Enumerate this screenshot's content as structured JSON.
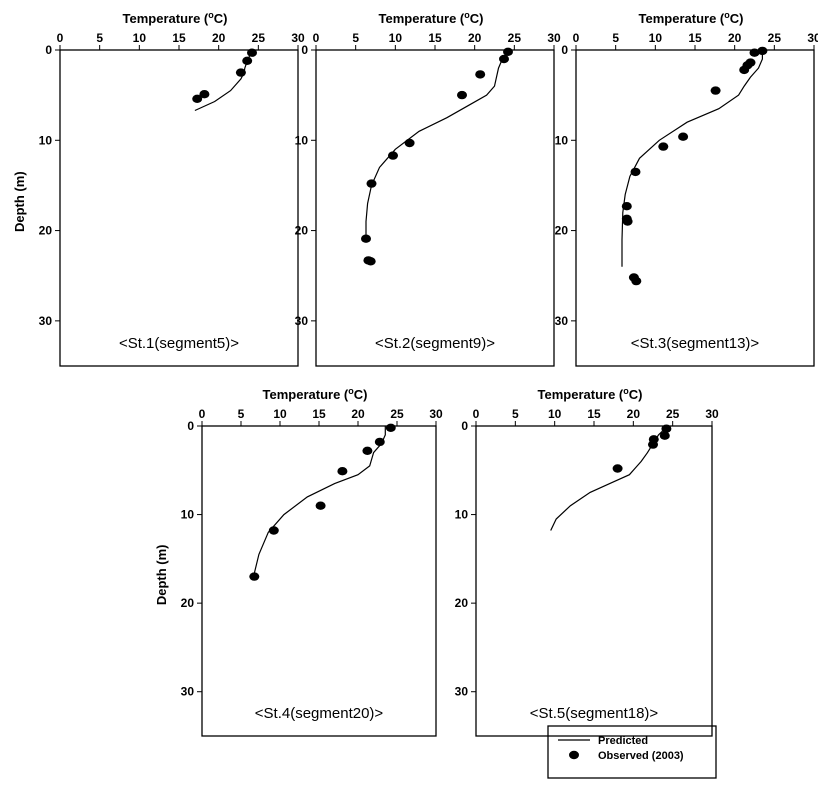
{
  "legend": {
    "items": [
      {
        "label": "Predicted",
        "kind": "line"
      },
      {
        "label": "Observed (2003)",
        "kind": "dot"
      }
    ]
  },
  "chart_data": [
    {
      "type": "line",
      "title": "<St.1(segment5)>",
      "xlabel": "Temperature (°C)",
      "ylabel": "Depth (m)",
      "xlim": [
        0,
        30
      ],
      "ylim": [
        35,
        0
      ],
      "xticks": [
        0,
        5,
        10,
        15,
        20,
        25,
        30
      ],
      "yticks": [
        0,
        10,
        20,
        30
      ],
      "series": [
        {
          "name": "Predicted",
          "kind": "line",
          "x": [
            24.0,
            24.0,
            23.7,
            23.5,
            23.3,
            23.2,
            22.8,
            21.5,
            19.5,
            17.0
          ],
          "y": [
            0,
            0.5,
            1.0,
            1.5,
            2.0,
            2.5,
            3.2,
            4.5,
            5.7,
            6.7
          ]
        },
        {
          "name": "Observed (2003)",
          "kind": "scatter",
          "x": [
            24.2,
            23.6,
            22.8,
            18.2,
            17.3
          ],
          "y": [
            0.3,
            1.2,
            2.5,
            4.9,
            5.4
          ]
        }
      ]
    },
    {
      "type": "line",
      "title": "<St.2(segment9)>",
      "xlabel": "Temperature (°C)",
      "ylabel": "",
      "xlim": [
        0,
        30
      ],
      "ylim": [
        35,
        0
      ],
      "xticks": [
        0,
        5,
        10,
        15,
        20,
        25,
        30
      ],
      "yticks": [
        0,
        10,
        20,
        30
      ],
      "series": [
        {
          "name": "Predicted",
          "kind": "line",
          "x": [
            24.2,
            24.0,
            23.5,
            23.0,
            22.5,
            21.5,
            19.5,
            16.5,
            13.0,
            10.0,
            8.0,
            7.0,
            6.5,
            6.3,
            6.3
          ],
          "y": [
            0,
            0.5,
            1.0,
            2.0,
            4.0,
            5.0,
            6.0,
            7.5,
            9.0,
            11.0,
            13.0,
            15.0,
            17.0,
            19.0,
            21.0
          ]
        },
        {
          "name": "Observed (2003)",
          "kind": "scatter",
          "x": [
            24.2,
            23.7,
            20.7,
            18.4,
            11.8,
            9.7,
            7.0,
            6.3,
            6.6,
            6.9
          ],
          "y": [
            0.2,
            1.0,
            2.7,
            5.0,
            10.3,
            11.7,
            14.8,
            20.9,
            23.3,
            23.4
          ]
        }
      ]
    },
    {
      "type": "line",
      "title": "<St.3(segment13)>",
      "xlabel": "Temperature (°C)",
      "ylabel": "",
      "xlim": [
        0,
        30
      ],
      "ylim": [
        35,
        0
      ],
      "xticks": [
        0,
        5,
        10,
        15,
        20,
        25,
        30
      ],
      "yticks": [
        0,
        10,
        20,
        30
      ],
      "series": [
        {
          "name": "Predicted",
          "kind": "line",
          "x": [
            23.5,
            23.5,
            23.0,
            22.0,
            21.2,
            20.5,
            18.0,
            14.0,
            10.5,
            8.0,
            6.8,
            6.2,
            5.9,
            5.8,
            5.8
          ],
          "y": [
            0,
            1.0,
            2.0,
            3.0,
            4.0,
            5.0,
            6.5,
            8.0,
            10.0,
            12.0,
            14.0,
            16.0,
            18.0,
            21.0,
            24.0
          ]
        },
        {
          "name": "Observed (2003)",
          "kind": "scatter",
          "x": [
            23.5,
            22.5,
            22.0,
            21.6,
            21.2,
            17.6,
            13.5,
            11.0,
            7.5,
            6.4,
            6.4,
            6.5,
            7.3,
            7.6
          ],
          "y": [
            0.1,
            0.3,
            1.4,
            1.7,
            2.2,
            4.5,
            9.6,
            10.7,
            13.5,
            17.3,
            18.7,
            19.0,
            25.2,
            25.6
          ]
        }
      ]
    },
    {
      "type": "line",
      "title": "<St.4(segment20)>",
      "xlabel": "Temperature (°C)",
      "ylabel": "Depth (m)",
      "xlim": [
        0,
        30
      ],
      "ylim": [
        35,
        0
      ],
      "xticks": [
        0,
        5,
        10,
        15,
        20,
        25,
        30
      ],
      "yticks": [
        0,
        10,
        20,
        30
      ],
      "series": [
        {
          "name": "Predicted",
          "kind": "line",
          "x": [
            23.5,
            23.5,
            23.0,
            22.0,
            21.5,
            20.0,
            17.0,
            13.5,
            10.5,
            8.5,
            7.3,
            6.6
          ],
          "y": [
            0,
            1.0,
            2.0,
            3.0,
            4.5,
            5.5,
            6.5,
            8.0,
            10.0,
            12.0,
            14.5,
            17.0
          ]
        },
        {
          "name": "Observed (2003)",
          "kind": "scatter",
          "x": [
            24.2,
            22.8,
            21.2,
            18.0,
            15.2,
            9.2,
            6.7
          ],
          "y": [
            0.2,
            1.8,
            2.8,
            5.1,
            9.0,
            11.8,
            17.0
          ]
        }
      ]
    },
    {
      "type": "line",
      "title": "<St.5(segment18)>",
      "xlabel": "Temperature (°C)",
      "ylabel": "",
      "xlim": [
        0,
        30
      ],
      "ylim": [
        35,
        0
      ],
      "xticks": [
        0,
        5,
        10,
        15,
        20,
        25,
        30
      ],
      "yticks": [
        0,
        10,
        20,
        30
      ],
      "series": [
        {
          "name": "Predicted",
          "kind": "line",
          "x": [
            24.0,
            23.8,
            23.2,
            22.5,
            21.8,
            21.0,
            19.5,
            17.0,
            14.5,
            12.0,
            10.2,
            9.5
          ],
          "y": [
            0,
            0.5,
            1.0,
            2.0,
            3.0,
            4.0,
            5.5,
            6.5,
            7.5,
            9.0,
            10.5,
            11.8
          ]
        },
        {
          "name": "Observed (2003)",
          "kind": "scatter",
          "x": [
            24.2,
            24.0,
            22.6,
            22.5,
            18.0
          ],
          "y": [
            0.3,
            1.1,
            1.5,
            2.1,
            4.8
          ]
        }
      ]
    }
  ]
}
